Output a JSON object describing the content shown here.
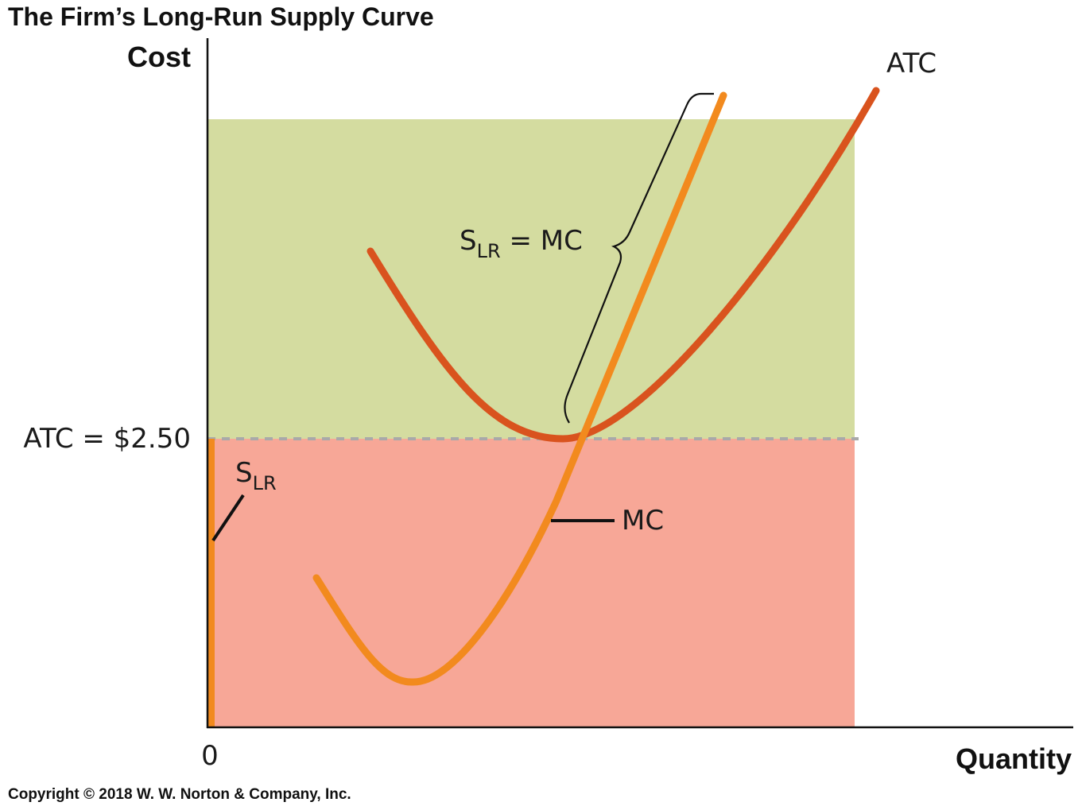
{
  "chart_data": {
    "type": "line",
    "title": "The Firm’s Long-Run Supply Curve",
    "ylabel": "Cost",
    "xlabel": "Quantity",
    "origin_label": "0",
    "y_tick_label": "ATC = $2.50",
    "atc_min_value": 2.5,
    "series": [
      {
        "name": "ATC"
      },
      {
        "name": "MC"
      }
    ],
    "annotations": {
      "slr_mc": {
        "main": "S",
        "sub": "LR",
        "rest": " = MC"
      },
      "slr": {
        "main": "S",
        "sub": "LR"
      },
      "mc": "MC",
      "atc": "ATC"
    },
    "regions": [
      {
        "name": "above-atc-min",
        "color": "#d4dca0"
      },
      {
        "name": "below-atc-min",
        "color": "#f7a797"
      }
    ],
    "colors": {
      "atc": "#d9531e",
      "mc": "#f28a1e",
      "dashed": "#a9a9a9",
      "axis": "#111111"
    }
  },
  "copyright": "Copyright © 2018 W. W. Norton & Company, Inc."
}
